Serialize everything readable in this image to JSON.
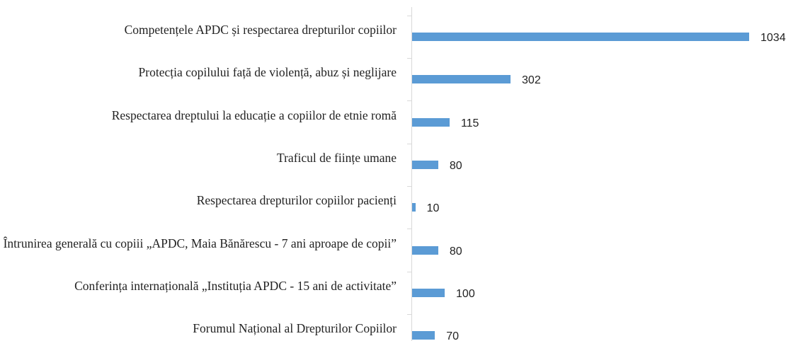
{
  "chart_data": {
    "type": "bar",
    "orientation": "horizontal",
    "color": "#5b9bd5",
    "categories": [
      "Competențele APDC și respectarea drepturilor copiilor",
      "Protecția copilului față de violență, abuz și neglijare",
      "Respectarea dreptului la educație a copiilor de etnie romă",
      "Traficul de ființe umane",
      "Respectarea drepturilor copiilor pacienți",
      "Întrunirea generală cu copiii „APDC, Maia Bănărescu - 7 ani aproape de copii”",
      "Conferința internațională „Instituția APDC - 15 ani de activitate”",
      "Forumul Național al Drepturilor Copiilor"
    ],
    "values": [
      1034,
      302,
      115,
      80,
      10,
      80,
      100,
      70
    ]
  }
}
